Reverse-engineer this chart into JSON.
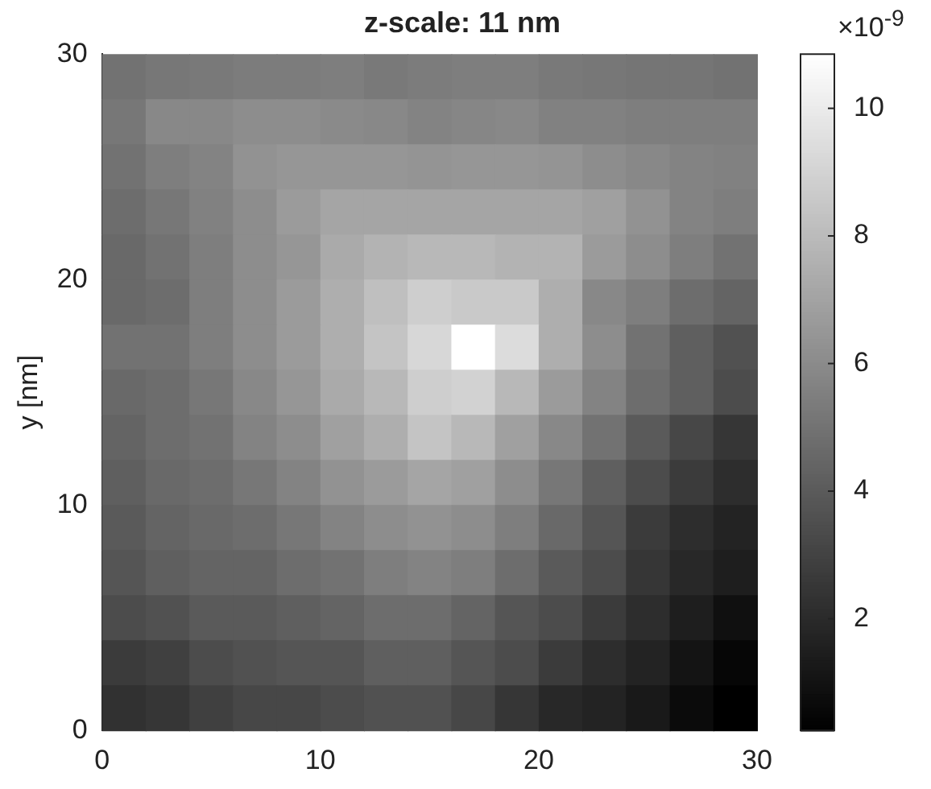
{
  "chart_data": {
    "type": "heatmap",
    "title": "z-scale: 11 nm",
    "ylabel": "y [nm]",
    "annotations": [
      "×10$^{-9}$"
    ],
    "x": [
      1,
      3,
      5,
      7,
      9,
      11,
      13,
      15,
      17,
      19,
      21,
      23,
      25,
      27,
      29
    ],
    "xlim": [
      0,
      30
    ],
    "xticks": [
      0,
      10,
      20,
      30
    ],
    "ylim": [
      0,
      30
    ],
    "yticks": [
      0,
      10,
      20,
      30
    ],
    "clim": [
      0.25,
      10.85
    ],
    "cticks": [
      2,
      4,
      6,
      8,
      10
    ],
    "cells": [
      [
        5.0,
        5.2,
        5.3,
        5.4,
        5.4,
        5.5,
        5.3,
        5.4,
        5.5,
        5.5,
        5.3,
        5.2,
        5.1,
        5.1,
        5.0
      ],
      [
        5.2,
        5.9,
        5.9,
        6.1,
        6.1,
        6.0,
        5.9,
        5.7,
        5.8,
        5.9,
        5.6,
        5.6,
        5.5,
        5.5,
        5.5
      ],
      [
        5.0,
        5.5,
        5.7,
        6.3,
        6.5,
        6.5,
        6.5,
        6.4,
        6.5,
        6.5,
        6.4,
        6.1,
        5.9,
        5.7,
        5.6
      ],
      [
        4.8,
        5.2,
        5.6,
        6.1,
        6.7,
        7.1,
        7.1,
        7.1,
        7.1,
        7.1,
        7.1,
        6.9,
        6.3,
        5.7,
        5.5
      ],
      [
        4.6,
        5.0,
        5.5,
        6.1,
        6.5,
        7.3,
        7.7,
        7.9,
        7.9,
        7.7,
        7.7,
        6.7,
        6.1,
        5.5,
        5.0
      ],
      [
        4.6,
        4.8,
        5.5,
        6.1,
        6.7,
        7.5,
        8.2,
        8.8,
        8.6,
        8.6,
        7.5,
        5.9,
        5.5,
        4.8,
        4.4
      ],
      [
        5.0,
        5.0,
        5.5,
        6.1,
        6.7,
        7.5,
        8.4,
        9.2,
        10.85,
        9.4,
        7.5,
        6.1,
        5.0,
        4.2,
        3.6
      ],
      [
        4.6,
        4.8,
        5.2,
        5.9,
        6.5,
        7.3,
        7.9,
        8.8,
        9.0,
        7.9,
        6.7,
        5.7,
        4.8,
        4.2,
        3.4
      ],
      [
        4.4,
        4.8,
        5.0,
        5.7,
        6.1,
        6.9,
        7.5,
        8.4,
        7.9,
        6.9,
        5.9,
        5.0,
        4.0,
        3.2,
        2.5
      ],
      [
        4.2,
        4.6,
        4.8,
        5.2,
        5.7,
        6.3,
        6.7,
        7.1,
        6.9,
        6.1,
        5.2,
        4.2,
        3.4,
        2.7,
        2.1
      ],
      [
        4.0,
        4.4,
        4.6,
        4.8,
        5.2,
        5.7,
        6.1,
        6.3,
        6.1,
        5.5,
        4.6,
        3.8,
        2.7,
        2.1,
        1.7
      ],
      [
        3.8,
        4.2,
        4.4,
        4.4,
        4.8,
        5.0,
        5.5,
        5.7,
        5.5,
        4.8,
        4.0,
        3.4,
        2.5,
        1.9,
        1.5
      ],
      [
        3.4,
        3.6,
        4.0,
        4.0,
        4.2,
        4.4,
        4.8,
        4.8,
        4.4,
        3.8,
        3.4,
        2.7,
        2.1,
        1.5,
        0.9
      ],
      [
        2.7,
        2.9,
        3.4,
        3.6,
        3.8,
        3.8,
        4.2,
        4.2,
        3.8,
        3.4,
        2.7,
        2.1,
        1.7,
        1.1,
        0.5
      ],
      [
        2.3,
        2.5,
        2.9,
        3.2,
        3.2,
        3.4,
        3.6,
        3.6,
        3.2,
        2.5,
        1.9,
        1.7,
        1.3,
        0.7,
        0.25
      ]
    ]
  }
}
